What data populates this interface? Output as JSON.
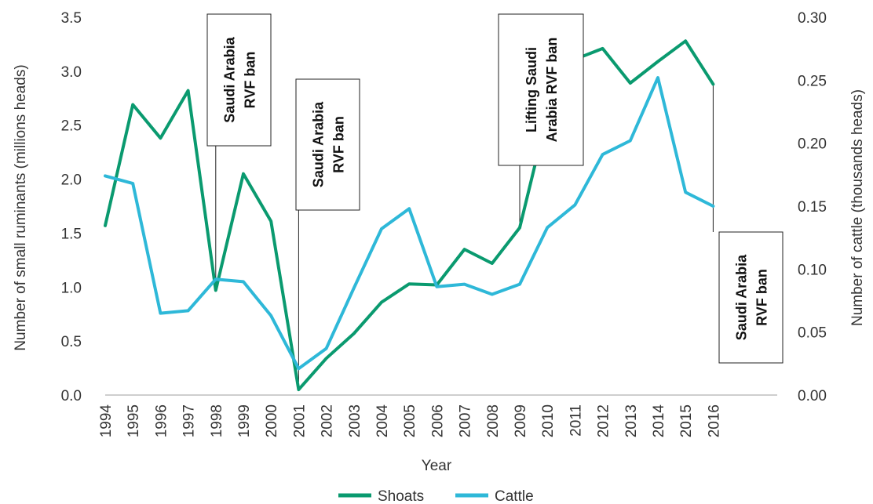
{
  "chart_data": {
    "type": "line",
    "xlabel": "Year",
    "ylabel_left": "Number of small ruminants (millions heads)",
    "ylabel_right": "Number of cattle (thousands heads)",
    "ylim_left": [
      0,
      3.5
    ],
    "ylim_right": [
      0,
      0.3
    ],
    "yticks_left": [
      "0.0",
      "0.5",
      "1.0",
      "1.5",
      "2.0",
      "2.5",
      "3.0",
      "3.5"
    ],
    "yticks_right": [
      "0.00",
      "0.05",
      "0.10",
      "0.15",
      "0.20",
      "0.25",
      "0.30"
    ],
    "x": [
      "1994",
      "1995",
      "1996",
      "1997",
      "1998",
      "1999",
      "2000",
      "2001",
      "2002",
      "2003",
      "2004",
      "2005",
      "2006",
      "2007",
      "2008",
      "2009",
      "2010",
      "2011",
      "2012",
      "2013",
      "2014",
      "2015",
      "2016"
    ],
    "grid": false,
    "legend_position": "bottom",
    "series": [
      {
        "name": "Shoats",
        "axis": "left",
        "color": "#0a9a6f",
        "values": [
          1.57,
          2.69,
          2.38,
          2.82,
          0.97,
          2.05,
          1.61,
          0.05,
          0.34,
          0.57,
          0.86,
          1.03,
          1.02,
          1.35,
          1.22,
          1.55,
          2.6,
          3.11,
          3.21,
          2.89,
          3.09,
          3.28,
          2.88
        ]
      },
      {
        "name": "Cattle",
        "axis": "right",
        "color": "#2eb8d8",
        "values": [
          0.174,
          0.168,
          0.065,
          0.067,
          0.092,
          0.09,
          0.063,
          0.021,
          0.037,
          0.085,
          0.132,
          0.148,
          0.086,
          0.088,
          0.08,
          0.088,
          0.133,
          0.151,
          0.191,
          0.202,
          0.252,
          0.161,
          0.15
        ]
      }
    ],
    "annotations": [
      {
        "label": "Saudi Arabia RVF ban",
        "year": "1998",
        "lines": [
          "Saudi Arabia",
          "RVF ban"
        ]
      },
      {
        "label": "Saudi Arabia RVF ban",
        "year": "2001",
        "lines": [
          "Saudi Arabia",
          "RVF ban"
        ]
      },
      {
        "label": "Lifting Saudi Arabia RVF ban",
        "year": "2009",
        "lines": [
          "Lifting Saudi",
          "Arabia RVF ban"
        ]
      },
      {
        "label": "Saudi Arabia RVF ban",
        "year": "2016",
        "lines": [
          "Saudi Arabia",
          "RVF ban"
        ]
      }
    ]
  }
}
